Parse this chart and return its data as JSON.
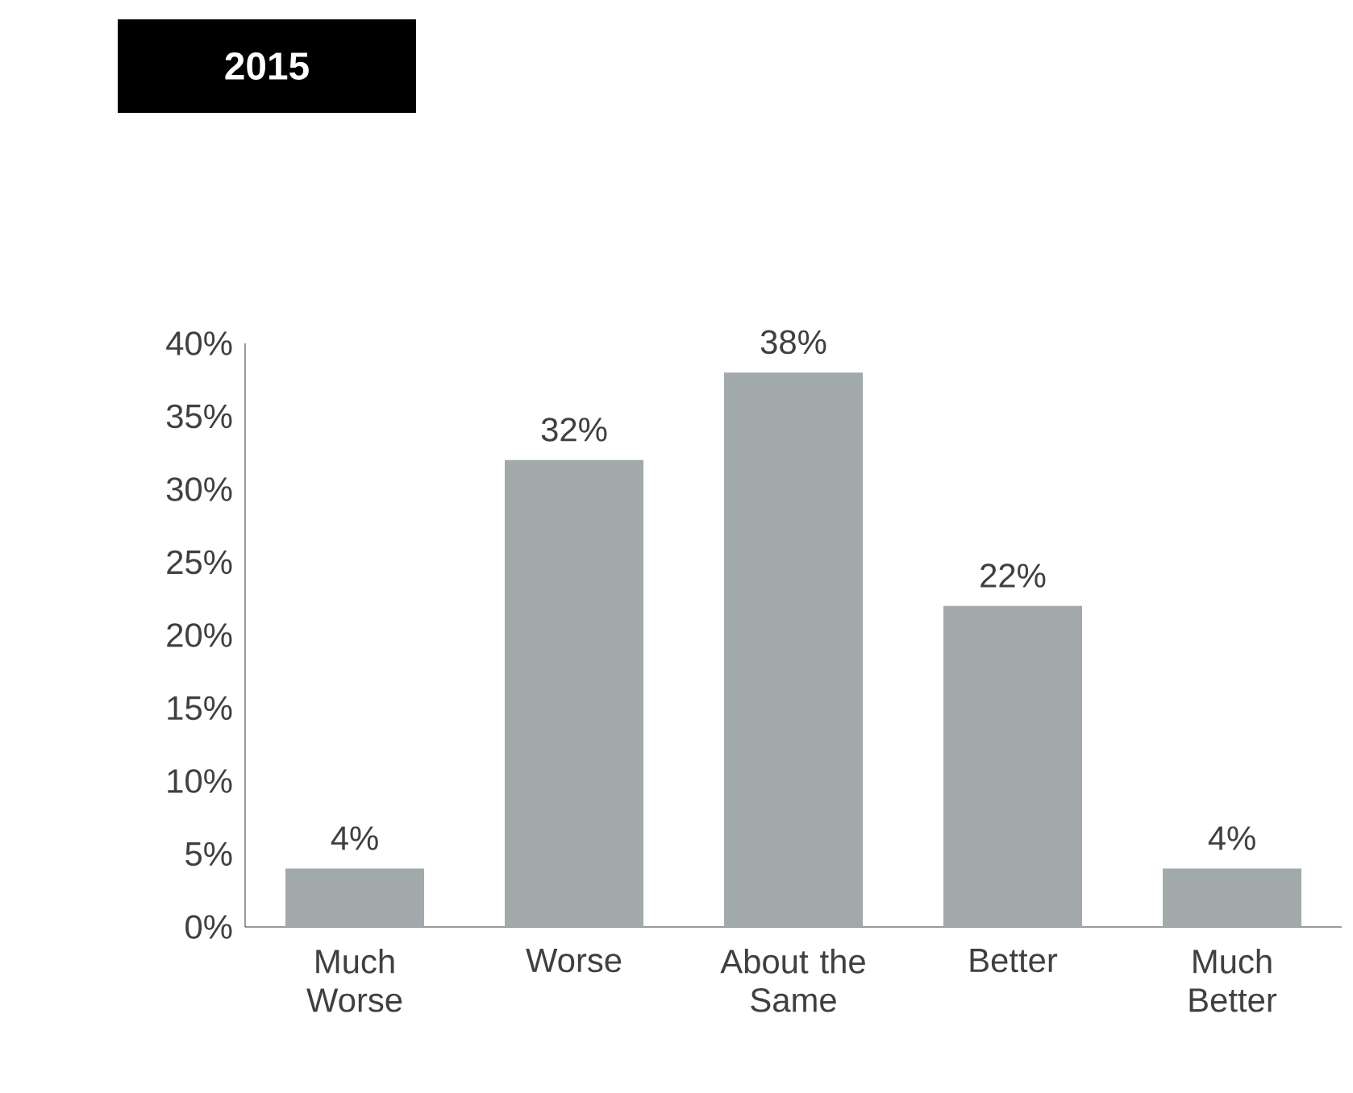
{
  "chart_data": {
    "type": "bar",
    "title": "2015",
    "categories": [
      "Much Worse",
      "Worse",
      "About the Same",
      "Better",
      "Much Better"
    ],
    "values": [
      4,
      32,
      38,
      22,
      4
    ],
    "value_labels": [
      "4%",
      "32%",
      "38%",
      "22%",
      "4%"
    ],
    "color": "#a2a9ab",
    "ylim": [
      0,
      40
    ],
    "yticks": [
      {
        "value": 0,
        "label": "0%"
      },
      {
        "value": 5,
        "label": "5%"
      },
      {
        "value": 10,
        "label": "10%"
      },
      {
        "value": 15,
        "label": "15%"
      },
      {
        "value": 20,
        "label": "20%"
      },
      {
        "value": 25,
        "label": "25%"
      },
      {
        "value": 30,
        "label": "30%"
      },
      {
        "value": 35,
        "label": "35%"
      },
      {
        "value": 40,
        "label": "40%"
      }
    ],
    "grid": false
  }
}
